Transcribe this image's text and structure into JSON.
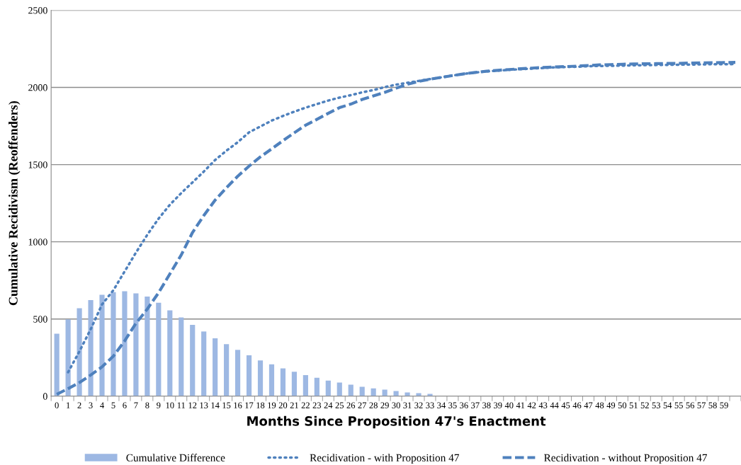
{
  "chart_data": {
    "type": "bar",
    "xlabel": "Months Since Proposition 47's Enactment",
    "ylabel": "Cumulative Recidivism (Reoffenders)",
    "categories": [
      "0",
      "1",
      "2",
      "3",
      "4",
      "5",
      "6",
      "7",
      "8",
      "9",
      "10",
      "11",
      "12",
      "13",
      "14",
      "15",
      "16",
      "17",
      "18",
      "19",
      "20",
      "21",
      "22",
      "23",
      "24",
      "25",
      "26",
      "27",
      "28",
      "29",
      "30",
      "31",
      "32",
      "33",
      "34",
      "35",
      "36",
      "37",
      "38",
      "39",
      "40",
      "41",
      "42",
      "43",
      "44",
      "45",
      "46",
      "47",
      "48",
      "49",
      "50",
      "51",
      "52",
      "53",
      "54",
      "55",
      "56",
      "57",
      "58",
      "59",
      null
    ],
    "series": [
      {
        "name": "Cumulative Difference",
        "color": "#9db8e3",
        "values": [
          405,
          498,
          570,
          622,
          657,
          674,
          680,
          666,
          645,
          605,
          556,
          510,
          462,
          419,
          375,
          337,
          300,
          265,
          232,
          206,
          180,
          158,
          136,
          119,
          101,
          88,
          75,
          61,
          51,
          42,
          33,
          24,
          20,
          15,
          0,
          0,
          0,
          0,
          0,
          0,
          0,
          0,
          0,
          0,
          0,
          0,
          0,
          0,
          0,
          0,
          0,
          0,
          0,
          0,
          0,
          0,
          0,
          0,
          0,
          0,
          0
        ]
      },
      {
        "name": "Recidivation - with Proposition 47",
        "type": "line",
        "line_style": "dotted",
        "color": "#4f81bd",
        "values": [
          null,
          155,
          290,
          434,
          594,
          686,
          808,
          930,
          1045,
          1150,
          1240,
          1315,
          1385,
          1455,
          1530,
          1590,
          1645,
          1709,
          1747,
          1785,
          1815,
          1843,
          1869,
          1892,
          1915,
          1934,
          1950,
          1968,
          1983,
          2002,
          2018,
          2030,
          2042,
          2054,
          2065,
          2077,
          2088,
          2096,
          2104,
          2109,
          2114,
          2118,
          2122,
          2126,
          2130,
          2132,
          2134,
          2137,
          2139,
          2140,
          2141,
          2143,
          2144,
          2145,
          2146,
          2147,
          2148,
          2149,
          2150,
          2150,
          2151
        ]
      },
      {
        "name": "Recidivation - without Proposition 47",
        "type": "line",
        "line_style": "dashed",
        "color": "#4f81bd",
        "values": [
          12,
          49,
          88,
          137,
          190,
          259,
          358,
          472,
          564,
          670,
          792,
          914,
          1060,
          1170,
          1270,
          1350,
          1425,
          1490,
          1550,
          1602,
          1655,
          1706,
          1755,
          1793,
          1832,
          1869,
          1892,
          1922,
          1945,
          1968,
          1995,
          2020,
          2039,
          2053,
          2065,
          2077,
          2088,
          2097,
          2105,
          2111,
          2116,
          2121,
          2125,
          2129,
          2132,
          2135,
          2138,
          2142,
          2146,
          2148,
          2150,
          2152,
          2153,
          2154,
          2155,
          2156,
          2158,
          2159,
          2160,
          2161,
          2162
        ]
      }
    ],
    "ylim": [
      0,
      2500
    ],
    "yticks": [
      0,
      500,
      1000,
      1500,
      2000,
      2500
    ],
    "grid": "y",
    "legend": "bottom",
    "marker": "none"
  }
}
